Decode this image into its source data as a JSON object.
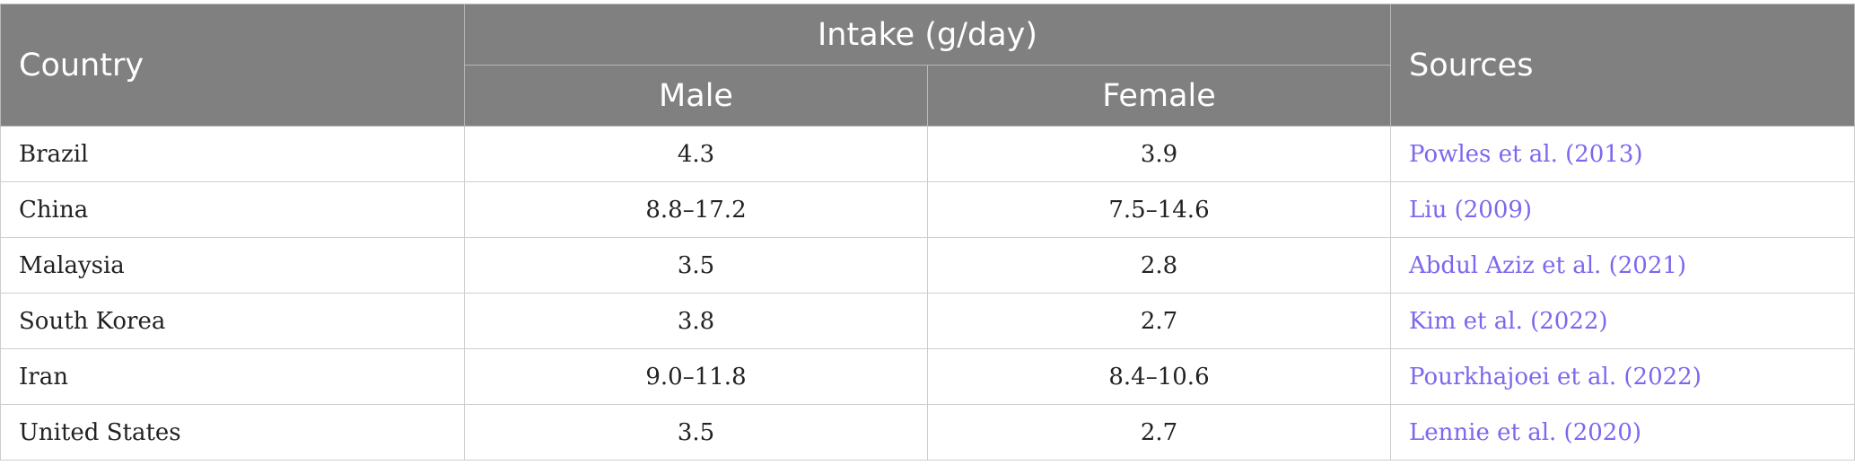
{
  "table": {
    "headers": {
      "country": "Country",
      "intake_group": "Intake (g/day)",
      "male": "Male",
      "female": "Female",
      "sources": "Sources"
    },
    "rows": [
      {
        "country": "Brazil",
        "male": "4.3",
        "female": "3.9",
        "source": "Powles et al. (2013)"
      },
      {
        "country": "China",
        "male": "8.8–17.2",
        "female": "7.5–14.6",
        "source": "Liu (2009)"
      },
      {
        "country": "Malaysia",
        "male": "3.5",
        "female": "2.8",
        "source": "Abdul Aziz et al. (2021)"
      },
      {
        "country": "South Korea",
        "male": "3.8",
        "female": "2.7",
        "source": "Kim et al. (2022)"
      },
      {
        "country": "Iran",
        "male": "9.0–11.8",
        "female": "8.4–10.6",
        "source": "Pourkhajoei et al. (2022)"
      },
      {
        "country": "United States",
        "male": "3.5",
        "female": "2.7",
        "source": "Lennie et al. (2020)"
      }
    ]
  },
  "colors": {
    "header_bg": "#808080",
    "link": "#7b68ee"
  }
}
